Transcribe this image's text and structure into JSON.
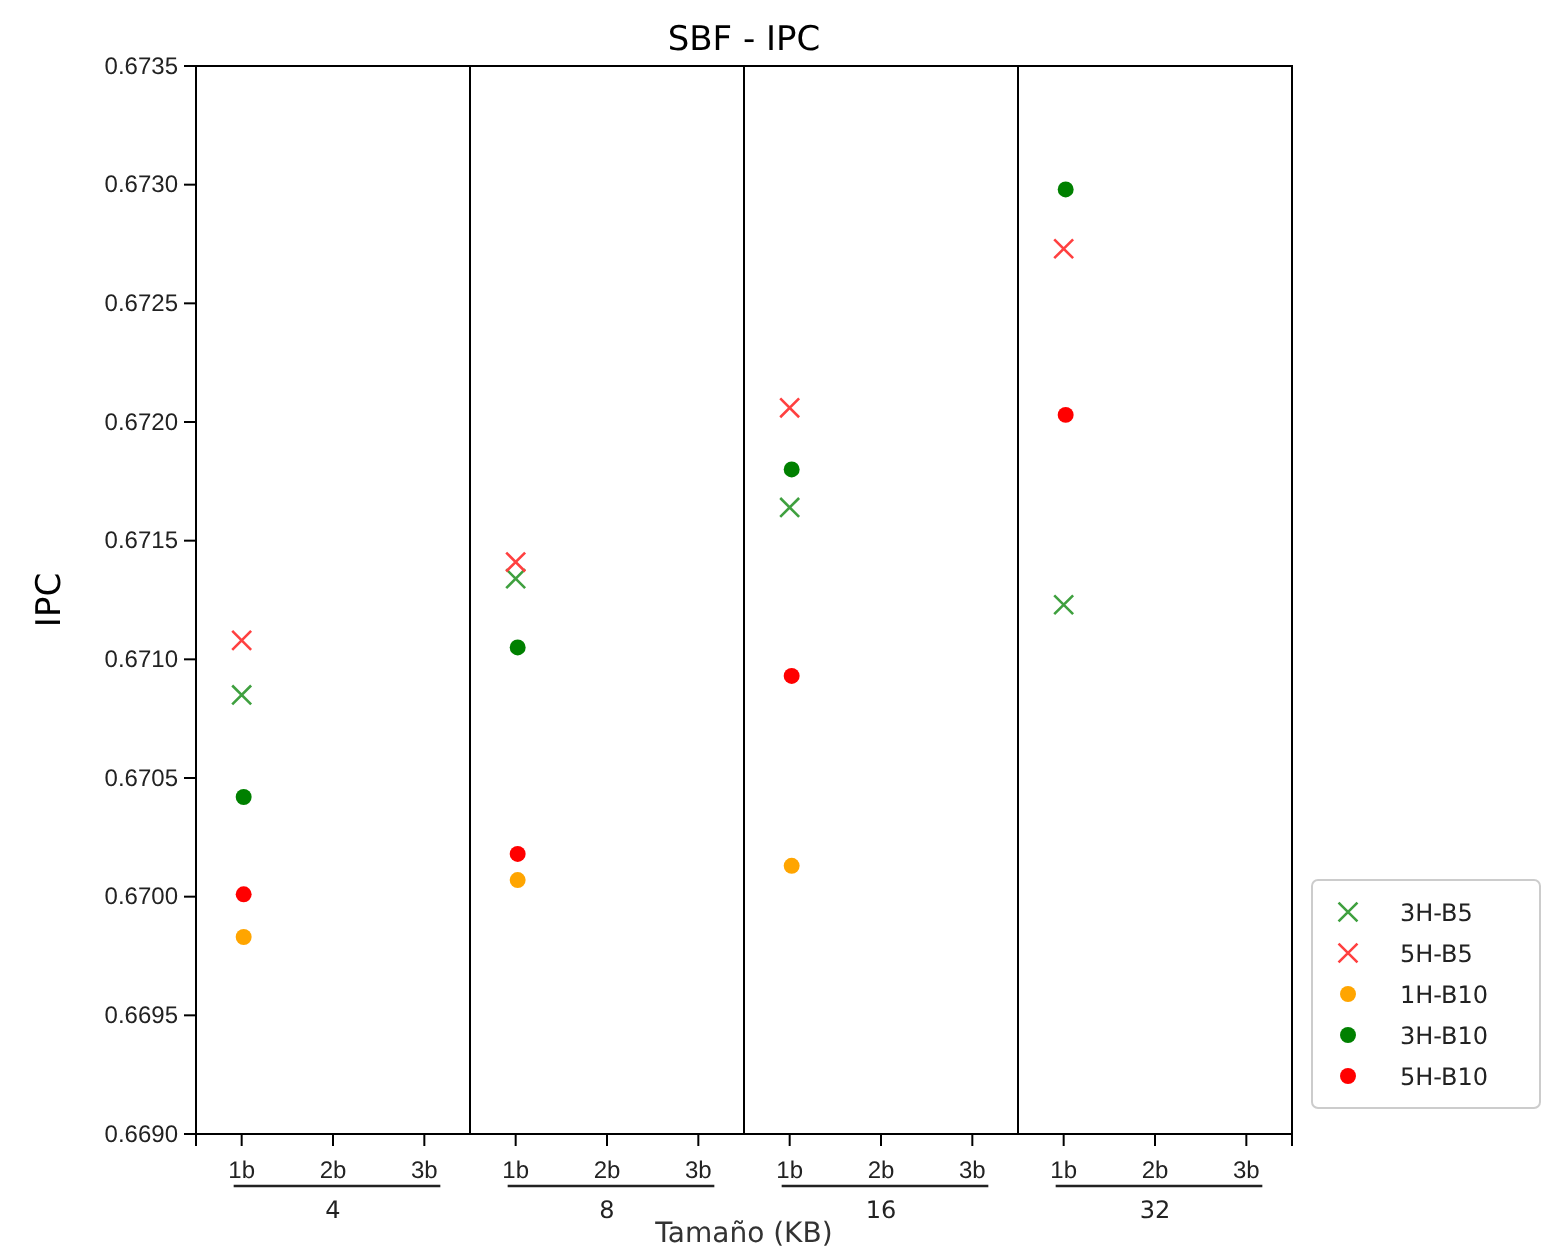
{
  "chart_data": {
    "type": "scatter",
    "title": "SBF - IPC",
    "xlabel": "Tamaño (KB)",
    "ylabel": "IPC",
    "categories": [
      "1b",
      "2b",
      "3b",
      "1b",
      "2b",
      "3b",
      "1b",
      "2b",
      "3b",
      "1b",
      "2b",
      "3b"
    ],
    "annotations": [
      "4",
      "8",
      "16",
      "32"
    ],
    "ylim": [
      0.669,
      0.6735
    ],
    "yticks": [
      {
        "value": 0.669,
        "label": "0.6690"
      },
      {
        "value": 0.6695,
        "label": "0.6695"
      },
      {
        "value": 0.67,
        "label": "0.6700"
      },
      {
        "value": 0.6705,
        "label": "0.6705"
      },
      {
        "value": 0.671,
        "label": "0.6710"
      },
      {
        "value": 0.6715,
        "label": "0.6715"
      },
      {
        "value": 0.672,
        "label": "0.6720"
      },
      {
        "value": 0.6725,
        "label": "0.6725"
      },
      {
        "value": 0.673,
        "label": "0.6730"
      },
      {
        "value": 0.6735,
        "label": "0.6735"
      }
    ],
    "legend": "bottom right",
    "grid": false,
    "series": [
      {
        "name": "3H-B5",
        "color": "#3fa03f",
        "marker": "cross",
        "values": [
          0.67085,
          null,
          null,
          0.67134,
          null,
          null,
          0.67164,
          null,
          null,
          0.67123,
          null,
          null
        ]
      },
      {
        "name": "5H-B5",
        "color": "#ff4040",
        "marker": "cross",
        "values": [
          0.67108,
          null,
          null,
          0.67141,
          null,
          null,
          0.67206,
          null,
          null,
          0.67273,
          null,
          null
        ]
      },
      {
        "name": "1H-B10",
        "color": "#ffa500",
        "marker": "circle",
        "values": [
          0.66983,
          null,
          null,
          0.67007,
          null,
          null,
          0.67013,
          null,
          null,
          null,
          null,
          null
        ]
      },
      {
        "name": "3H-B10",
        "color": "#008000",
        "marker": "circle",
        "values": [
          0.67042,
          null,
          null,
          0.67105,
          null,
          null,
          0.6718,
          null,
          null,
          0.67298,
          null,
          null
        ]
      },
      {
        "name": "5H-B10",
        "color": "#ff0000",
        "marker": "circle",
        "values": [
          0.67001,
          null,
          null,
          0.67018,
          null,
          null,
          0.67093,
          null,
          null,
          0.67203,
          null,
          null
        ]
      }
    ]
  }
}
